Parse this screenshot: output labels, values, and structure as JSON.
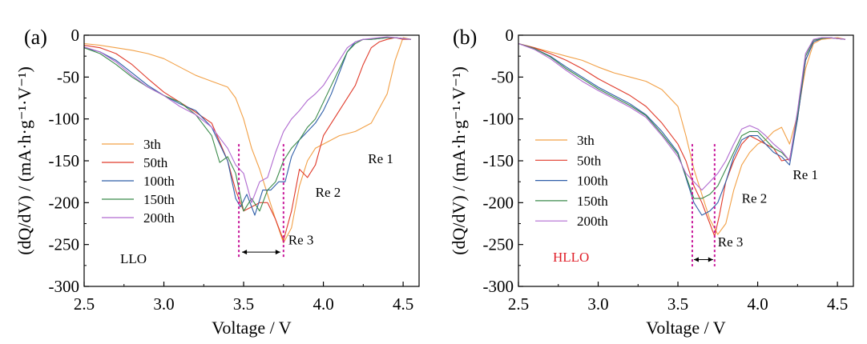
{
  "chart_data": [
    {
      "type": "line",
      "panel_label": "(a)",
      "sample_label": "LLO",
      "sample_label_color": "#000000",
      "xlabel": "Voltage / V",
      "ylabel": "(dQ/dV) / (mA·h·g⁻¹·V⁻¹)",
      "xlim": [
        2.5,
        4.6
      ],
      "ylim": [
        -300,
        0
      ],
      "xticks": [
        2.5,
        3.0,
        3.5,
        4.0,
        4.5
      ],
      "xtick_labels": [
        "2.5",
        "3.0",
        "3.5",
        "4.0",
        "4.5"
      ],
      "yticks": [
        0,
        -50,
        -100,
        -150,
        -200,
        -250,
        -300
      ],
      "ytick_labels": [
        "0",
        "-50",
        "-100",
        "-150",
        "-200",
        "-250",
        "-300"
      ],
      "legend_position": "left",
      "annotations": [
        {
          "text": "Re 1",
          "x": 4.28,
          "y": -153
        },
        {
          "text": "Re 2",
          "x": 3.95,
          "y": -193
        },
        {
          "text": "Re 3",
          "x": 3.78,
          "y": -250
        }
      ],
      "markers": {
        "vlines": [
          3.47,
          3.75
        ],
        "arrow": [
          3.49,
          3.73
        ],
        "arrow_y": -259,
        "vline_bottom": -265
      },
      "series": [
        {
          "name": "3th",
          "color": "#f2a046",
          "x": [
            2.5,
            2.6,
            2.7,
            2.8,
            2.9,
            3.0,
            3.1,
            3.2,
            3.3,
            3.4,
            3.45,
            3.5,
            3.55,
            3.6,
            3.65,
            3.7,
            3.75,
            3.8,
            3.85,
            3.9,
            3.95,
            4.0,
            4.1,
            4.2,
            4.3,
            4.4,
            4.45,
            4.5,
            4.55
          ],
          "y": [
            -10,
            -12,
            -15,
            -18,
            -22,
            -28,
            -38,
            -48,
            -55,
            -62,
            -75,
            -100,
            -135,
            -160,
            -190,
            -220,
            -248,
            -230,
            -180,
            -150,
            -135,
            -130,
            -120,
            -115,
            -105,
            -70,
            -30,
            -3,
            -5
          ]
        },
        {
          "name": "50th",
          "color": "#e03a2a",
          "x": [
            2.5,
            2.6,
            2.7,
            2.8,
            2.9,
            3.0,
            3.1,
            3.2,
            3.3,
            3.4,
            3.45,
            3.5,
            3.55,
            3.6,
            3.65,
            3.7,
            3.75,
            3.8,
            3.85,
            3.9,
            3.95,
            4.0,
            4.1,
            4.2,
            4.25,
            4.3,
            4.35,
            4.4,
            4.45,
            4.5,
            4.55
          ],
          "y": [
            -12,
            -15,
            -22,
            -35,
            -52,
            -68,
            -80,
            -92,
            -105,
            -150,
            -185,
            -210,
            -205,
            -200,
            -200,
            -220,
            -245,
            -210,
            -160,
            -170,
            -155,
            -120,
            -90,
            -60,
            -35,
            -15,
            -8,
            -5,
            -3,
            -5,
            -5
          ]
        },
        {
          "name": "100th",
          "color": "#2f5ea8",
          "x": [
            2.5,
            2.6,
            2.7,
            2.8,
            2.9,
            3.0,
            3.1,
            3.2,
            3.3,
            3.4,
            3.45,
            3.48,
            3.52,
            3.57,
            3.62,
            3.67,
            3.72,
            3.76,
            3.8,
            3.85,
            3.9,
            3.95,
            4.0,
            4.05,
            4.1,
            4.15,
            4.2,
            4.25,
            4.3,
            4.35,
            4.4,
            4.45,
            4.5,
            4.55
          ],
          "y": [
            -15,
            -20,
            -30,
            -45,
            -60,
            -72,
            -82,
            -90,
            -110,
            -150,
            -195,
            -205,
            -190,
            -215,
            -185,
            -185,
            -175,
            -175,
            -145,
            -125,
            -115,
            -105,
            -90,
            -70,
            -45,
            -20,
            -8,
            -5,
            -5,
            -4,
            -3,
            -3,
            -4,
            -5
          ]
        },
        {
          "name": "150th",
          "color": "#3a8a4a",
          "x": [
            2.5,
            2.6,
            2.7,
            2.8,
            2.9,
            3.0,
            3.1,
            3.2,
            3.3,
            3.35,
            3.4,
            3.45,
            3.5,
            3.55,
            3.6,
            3.65,
            3.7,
            3.75,
            3.8,
            3.85,
            3.9,
            3.95,
            4.0,
            4.05,
            4.1,
            4.15,
            4.2,
            4.25,
            4.3,
            4.35,
            4.4,
            4.45,
            4.5,
            4.55
          ],
          "y": [
            -15,
            -22,
            -35,
            -50,
            -62,
            -72,
            -80,
            -95,
            -120,
            -152,
            -145,
            -165,
            -210,
            -195,
            -210,
            -185,
            -175,
            -150,
            -135,
            -125,
            -110,
            -100,
            -80,
            -60,
            -40,
            -20,
            -10,
            -5,
            -5,
            -4,
            -3,
            -3,
            -4,
            -5
          ]
        },
        {
          "name": "200th",
          "color": "#b06ad0",
          "x": [
            2.5,
            2.6,
            2.7,
            2.8,
            2.9,
            3.0,
            3.1,
            3.2,
            3.3,
            3.4,
            3.45,
            3.5,
            3.55,
            3.6,
            3.65,
            3.7,
            3.75,
            3.8,
            3.85,
            3.9,
            3.95,
            4.0,
            4.05,
            4.1,
            4.15,
            4.2,
            4.25,
            4.3,
            4.35,
            4.4,
            4.45,
            4.5,
            4.55
          ],
          "y": [
            -14,
            -20,
            -32,
            -48,
            -62,
            -72,
            -85,
            -95,
            -110,
            -135,
            -155,
            -165,
            -200,
            -175,
            -170,
            -140,
            -115,
            -100,
            -90,
            -78,
            -70,
            -60,
            -45,
            -30,
            -15,
            -8,
            -5,
            -4,
            -3,
            -2,
            -3,
            -4,
            -5
          ]
        }
      ]
    },
    {
      "type": "line",
      "panel_label": "(b)",
      "sample_label": "HLLO",
      "sample_label_color": "#e0202a",
      "xlabel": "Voltage / V",
      "ylabel": "(dQ/dV) / (mA·h·g⁻¹·V⁻¹)",
      "xlim": [
        2.5,
        4.6
      ],
      "ylim": [
        -300,
        0
      ],
      "xticks": [
        2.5,
        3.0,
        3.5,
        4.0,
        4.5
      ],
      "xtick_labels": [
        "2.5",
        "3.0",
        "3.5",
        "4.0",
        "4.5"
      ],
      "yticks": [
        0,
        -50,
        -100,
        -150,
        -200,
        -250,
        -300
      ],
      "ytick_labels": [
        "0",
        "-50",
        "-100",
        "-150",
        "-200",
        "-250",
        "-300"
      ],
      "legend_position": "left",
      "annotations": [
        {
          "text": "Re 1",
          "x": 4.22,
          "y": -172
        },
        {
          "text": "Re 2",
          "x": 3.9,
          "y": -200
        },
        {
          "text": "Re 3",
          "x": 3.75,
          "y": -252
        }
      ],
      "markers": {
        "vlines": [
          3.59,
          3.73
        ],
        "arrow": [
          3.6,
          3.72
        ],
        "arrow_y": -268,
        "vline_bottom": -276
      },
      "series": [
        {
          "name": "3th",
          "color": "#f2a046",
          "x": [
            2.5,
            2.6,
            2.7,
            2.8,
            2.9,
            3.0,
            3.1,
            3.2,
            3.3,
            3.4,
            3.5,
            3.55,
            3.6,
            3.65,
            3.7,
            3.75,
            3.8,
            3.85,
            3.9,
            3.95,
            4.0,
            4.05,
            4.1,
            4.15,
            4.2,
            4.25,
            4.3,
            4.35,
            4.4,
            4.45,
            4.5,
            4.55
          ],
          "y": [
            -10,
            -15,
            -20,
            -25,
            -30,
            -38,
            -45,
            -50,
            -55,
            -65,
            -85,
            -120,
            -160,
            -190,
            -220,
            -238,
            -225,
            -185,
            -155,
            -140,
            -130,
            -125,
            -115,
            -110,
            -130,
            -95,
            -40,
            -10,
            -5,
            -4,
            -3,
            -5
          ]
        },
        {
          "name": "50th",
          "color": "#e03a2a",
          "x": [
            2.5,
            2.6,
            2.7,
            2.8,
            2.9,
            3.0,
            3.1,
            3.2,
            3.3,
            3.4,
            3.5,
            3.55,
            3.6,
            3.65,
            3.7,
            3.73,
            3.76,
            3.8,
            3.85,
            3.9,
            3.95,
            4.0,
            4.05,
            4.1,
            4.15,
            4.2,
            4.25,
            4.3,
            4.35,
            4.4,
            4.45,
            4.5,
            4.55
          ],
          "y": [
            -10,
            -15,
            -22,
            -30,
            -40,
            -52,
            -62,
            -72,
            -85,
            -105,
            -130,
            -150,
            -180,
            -200,
            -225,
            -240,
            -215,
            -175,
            -150,
            -130,
            -120,
            -125,
            -130,
            -135,
            -150,
            -148,
            -100,
            -30,
            -8,
            -4,
            -3,
            -4,
            -5
          ]
        },
        {
          "name": "100th",
          "color": "#2f5ea8",
          "x": [
            2.5,
            2.6,
            2.7,
            2.8,
            2.9,
            3.0,
            3.1,
            3.2,
            3.3,
            3.4,
            3.5,
            3.55,
            3.6,
            3.65,
            3.7,
            3.75,
            3.8,
            3.85,
            3.9,
            3.95,
            4.0,
            4.05,
            4.1,
            4.15,
            4.2,
            4.25,
            4.3,
            4.35,
            4.4,
            4.45,
            4.5,
            4.55
          ],
          "y": [
            -10,
            -16,
            -25,
            -38,
            -50,
            -62,
            -72,
            -82,
            -95,
            -115,
            -140,
            -170,
            -200,
            -215,
            -210,
            -200,
            -175,
            -145,
            -125,
            -120,
            -120,
            -130,
            -140,
            -145,
            -155,
            -100,
            -30,
            -8,
            -4,
            -3,
            -4,
            -5
          ]
        },
        {
          "name": "150th",
          "color": "#3a8a4a",
          "x": [
            2.5,
            2.6,
            2.7,
            2.8,
            2.9,
            3.0,
            3.1,
            3.2,
            3.3,
            3.4,
            3.5,
            3.55,
            3.6,
            3.65,
            3.7,
            3.75,
            3.8,
            3.85,
            3.9,
            3.95,
            4.0,
            4.05,
            4.1,
            4.15,
            4.2,
            4.25,
            4.3,
            4.35,
            4.4,
            4.45,
            4.5,
            4.55
          ],
          "y": [
            -10,
            -16,
            -26,
            -40,
            -52,
            -64,
            -74,
            -84,
            -96,
            -118,
            -142,
            -168,
            -195,
            -195,
            -190,
            -180,
            -160,
            -140,
            -120,
            -115,
            -115,
            -125,
            -135,
            -140,
            -150,
            -95,
            -25,
            -6,
            -4,
            -3,
            -4,
            -5
          ]
        },
        {
          "name": "200th",
          "color": "#b06ad0",
          "x": [
            2.5,
            2.6,
            2.7,
            2.8,
            2.9,
            3.0,
            3.1,
            3.2,
            3.3,
            3.4,
            3.5,
            3.55,
            3.6,
            3.65,
            3.7,
            3.75,
            3.8,
            3.85,
            3.9,
            3.95,
            4.0,
            4.05,
            4.1,
            4.15,
            4.2,
            4.25,
            4.3,
            4.35,
            4.4,
            4.45,
            4.5,
            4.55
          ],
          "y": [
            -10,
            -17,
            -28,
            -42,
            -55,
            -66,
            -76,
            -86,
            -98,
            -120,
            -145,
            -165,
            -175,
            -185,
            -175,
            -165,
            -150,
            -130,
            -112,
            -108,
            -112,
            -120,
            -130,
            -138,
            -150,
            -90,
            -22,
            -5,
            -3,
            -3,
            -4,
            -5
          ]
        }
      ]
    }
  ]
}
